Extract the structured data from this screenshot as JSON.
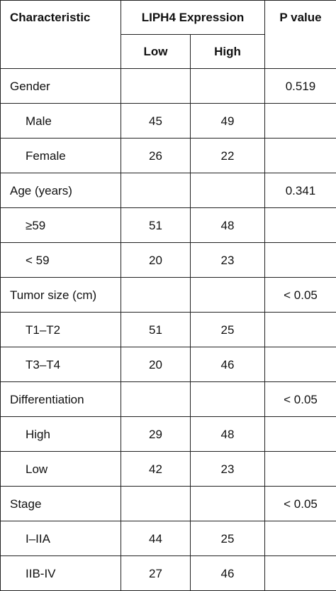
{
  "header": {
    "characteristic": "Characteristic",
    "expression": "LIPH4 Expression",
    "p_value": "P value",
    "low": "Low",
    "high": "High"
  },
  "rows": [
    {
      "label": "Gender",
      "low": "",
      "high": "",
      "p": "0.519"
    },
    {
      "label": "Male",
      "low": "45",
      "high": "49",
      "p": ""
    },
    {
      "label": "Female",
      "low": "26",
      "high": "22",
      "p": ""
    },
    {
      "label": "Age (years)",
      "low": "",
      "high": "",
      "p": "0.341"
    },
    {
      "label": "≥59",
      "low": "51",
      "high": "48",
      "p": ""
    },
    {
      "label": "< 59",
      "low": "20",
      "high": "23",
      "p": ""
    },
    {
      "label": "Tumor size (cm)",
      "low": "",
      "high": "",
      "p": "< 0.05"
    },
    {
      "label": "T1–T2",
      "low": "51",
      "high": "25",
      "p": ""
    },
    {
      "label": "T3–T4",
      "low": "20",
      "high": "46",
      "p": ""
    },
    {
      "label": "Differentiation",
      "low": "",
      "high": "",
      "p": "< 0.05"
    },
    {
      "label": "High",
      "low": "29",
      "high": "48",
      "p": ""
    },
    {
      "label": "Low",
      "low": "42",
      "high": "23",
      "p": ""
    },
    {
      "label": "Stage",
      "low": "",
      "high": "",
      "p": "< 0.05"
    },
    {
      "label": "I–IIA",
      "low": "44",
      "high": "25",
      "p": ""
    },
    {
      "label": "IIB-IV",
      "low": "27",
      "high": "46",
      "p": ""
    }
  ]
}
